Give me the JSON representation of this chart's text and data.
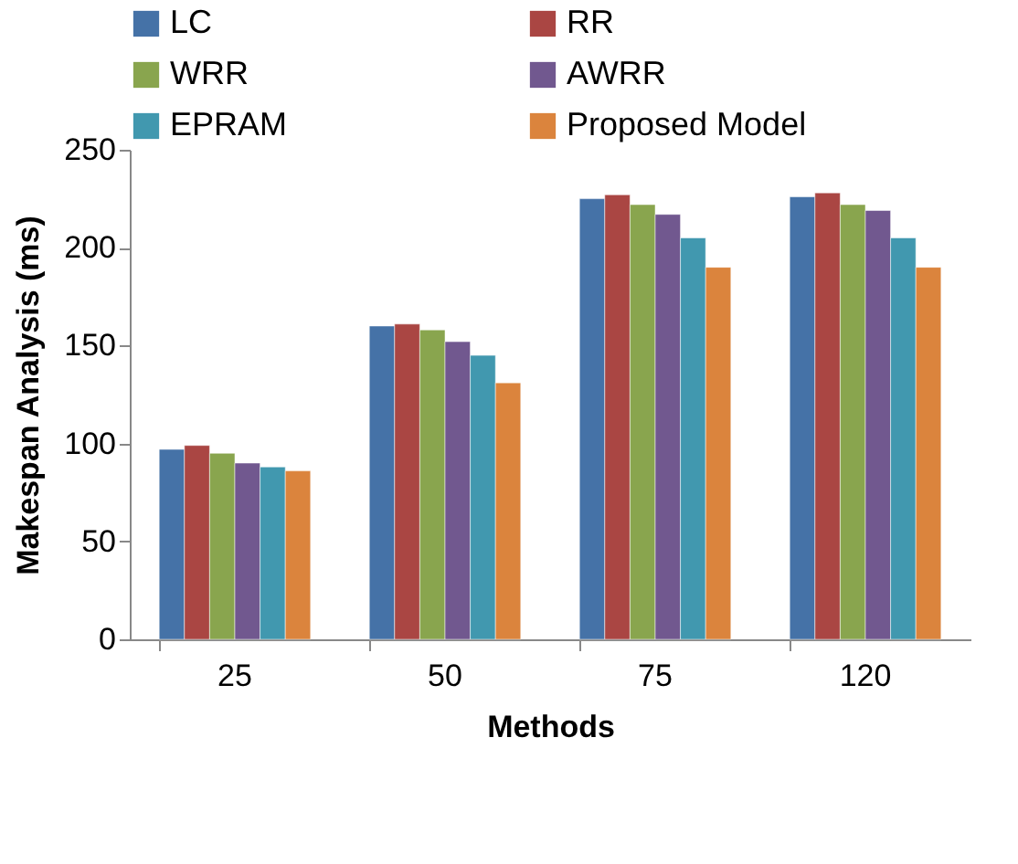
{
  "chart_data": {
    "type": "bar",
    "xlabel": "Methods",
    "ylabel": "Makespan Analysis (ms)",
    "categories": [
      "25",
      "50",
      "75",
      "120"
    ],
    "series": [
      {
        "name": "LC",
        "color": "#4572a7",
        "values": [
          97,
          160,
          225,
          226
        ]
      },
      {
        "name": "RR",
        "color": "#aa4643",
        "values": [
          99,
          161,
          227,
          228
        ]
      },
      {
        "name": "WRR",
        "color": "#89a54e",
        "values": [
          95,
          158,
          222,
          222
        ]
      },
      {
        "name": "AWRR",
        "color": "#71588f",
        "values": [
          90,
          152,
          217,
          219
        ]
      },
      {
        "name": "EPRAM",
        "color": "#4198af",
        "values": [
          88,
          145,
          205,
          205
        ]
      },
      {
        "name": "Proposed Model",
        "color": "#db843d",
        "values": [
          86,
          131,
          190,
          190
        ]
      }
    ],
    "ylim": [
      0,
      250
    ],
    "yticks": [
      0,
      50,
      100,
      150,
      200,
      250
    ],
    "grid": false,
    "legend": "top"
  }
}
